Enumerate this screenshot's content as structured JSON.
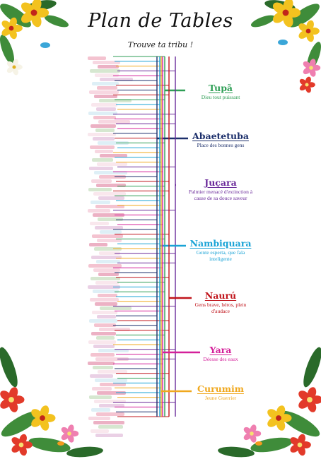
{
  "header": {
    "title": "Plan de Tables",
    "subtitle": "Trouve ta tribu !"
  },
  "tribes": [
    {
      "name": "Tupã",
      "description": "Dieu tout puissant",
      "color": "#2e9e55"
    },
    {
      "name": "Abaetetuba",
      "description": "Place des bonnes gens",
      "color": "#1c2f6b"
    },
    {
      "name": "Juçara",
      "description": "Palmier menacé d'extinction à cause de sa douce saveur",
      "color": "#6a2a9a"
    },
    {
      "name": "Nambiquara",
      "description": "Gente esperta, que fala inteligente",
      "color": "#1aa3d6"
    },
    {
      "name": "Naurú",
      "description": "Gens brave, héros, plein d'audace",
      "color": "#c0141b"
    },
    {
      "name": "Yara",
      "description": "Déesse des eaux",
      "color": "#d4209a"
    },
    {
      "name": "Curumim",
      "description": "Jeune Guerrier",
      "color": "#f0a81e"
    }
  ],
  "colors": {
    "leaf": "#3f8c3a",
    "leaf_dark": "#2a6a2a",
    "hibiscus": "#e23a2a",
    "yellow_orchid": "#f3c21f",
    "pink_flower": "#ef7fb0",
    "hummingbird": "#3aa6d8"
  },
  "icons": [
    "orchid-icon",
    "hibiscus-icon",
    "hummingbird-icon",
    "leaf-icon",
    "butterfly-icon"
  ]
}
